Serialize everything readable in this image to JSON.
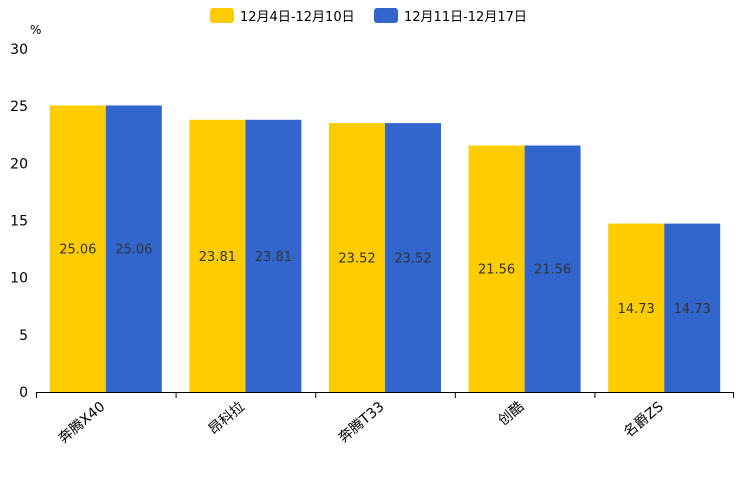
{
  "chart_data": {
    "type": "bar",
    "title": "",
    "xlabel": "",
    "ylabel": "%",
    "ylim": [
      0,
      30
    ],
    "yticks": [
      0,
      5,
      10,
      15,
      20,
      25,
      30
    ],
    "grid": false,
    "legend_position": "top-center",
    "categories": [
      "奔腾X40",
      "昂科拉",
      "奔腾T33",
      "创酷",
      "名爵ZS"
    ],
    "series": [
      {
        "name": "12月4日-12月10日",
        "color": "#ffcc00",
        "values": [
          25.06,
          23.81,
          23.52,
          21.56,
          14.73
        ],
        "labels": [
          "25.06",
          "23.81",
          "23.52",
          "21.56",
          "14.73"
        ]
      },
      {
        "name": "12月11日-12月17日",
        "color": "#3366cc",
        "values": [
          25.06,
          23.81,
          23.52,
          21.56,
          14.73
        ],
        "labels": [
          "25.06",
          "23.81",
          "23.52",
          "21.56",
          "14.73"
        ]
      }
    ]
  }
}
